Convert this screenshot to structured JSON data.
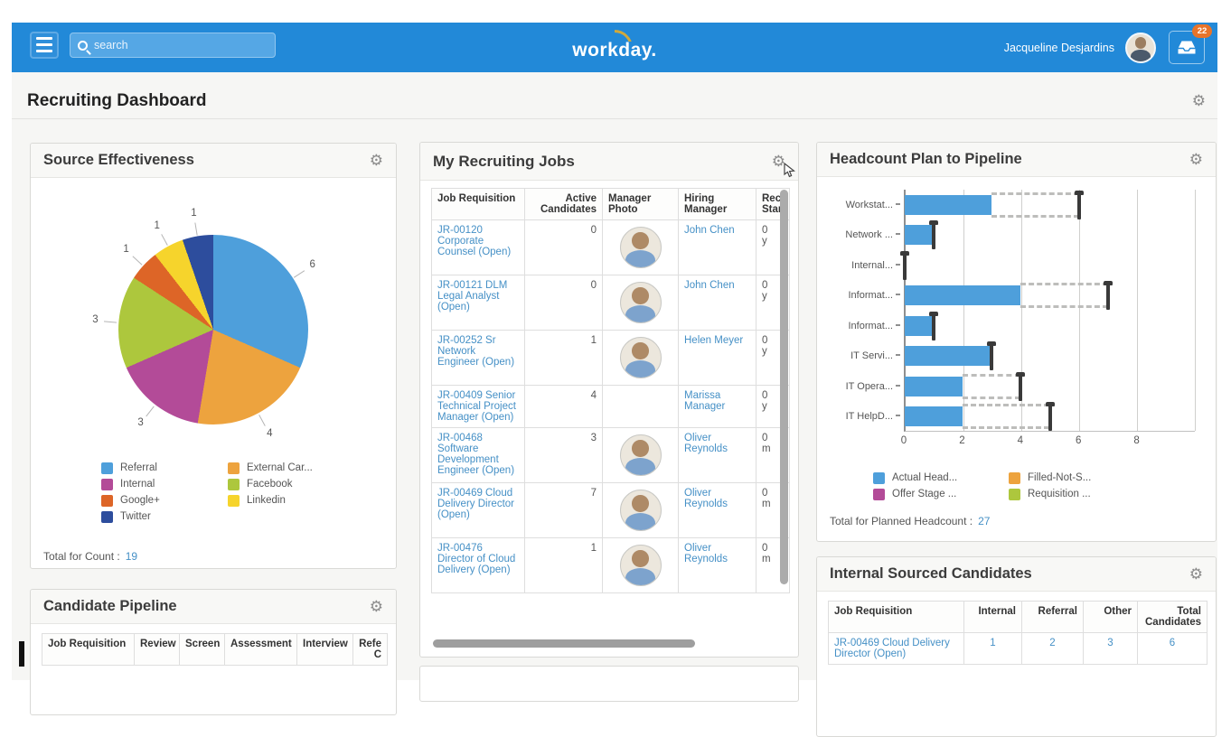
{
  "topbar": {
    "search_placeholder": "search",
    "logo_text": "workday.",
    "user_name": "Jacqueline Desjardins",
    "notification_count": "22"
  },
  "page": {
    "title": "Recruiting Dashboard"
  },
  "source_effectiveness": {
    "title": "Source Effectiveness",
    "legend_col1": [
      {
        "label": "Referral",
        "color": "#4e9fdb"
      },
      {
        "label": "Internal",
        "color": "#b34b98"
      },
      {
        "label": "Google+",
        "color": "#dd6527"
      },
      {
        "label": "Twitter",
        "color": "#2d4d9d"
      }
    ],
    "legend_col2": [
      {
        "label": "External Car...",
        "color": "#eda33e"
      },
      {
        "label": "Facebook",
        "color": "#adc73d"
      },
      {
        "label": "Linkedin",
        "color": "#f6d42c"
      }
    ],
    "total_label": "Total for Count :",
    "total_value": "19"
  },
  "my_recruiting_jobs": {
    "title": "My Recruiting Jobs",
    "columns": [
      {
        "lines": [
          "Job Requisition"
        ],
        "align": "left"
      },
      {
        "lines": [
          "Active",
          "Candidates"
        ],
        "align": "right"
      },
      {
        "lines": [
          "Manager",
          "Photo"
        ],
        "align": "left"
      },
      {
        "lines": [
          "Hiring",
          "Manager"
        ],
        "align": "left"
      },
      {
        "lines": [
          "Rec",
          "Star"
        ],
        "align": "left"
      }
    ],
    "rows": [
      {
        "job": "JR-00120 Corporate Counsel (Open)",
        "active": "0",
        "photo": true,
        "manager": "John Chen",
        "rec": [
          "0",
          "y"
        ]
      },
      {
        "job": "JR-00121 DLM Legal Analyst (Open)",
        "active": "0",
        "photo": true,
        "manager": "John Chen",
        "rec": [
          "0",
          "y"
        ]
      },
      {
        "job": "JR-00252 Sr Network Engineer (Open)",
        "active": "1",
        "photo": true,
        "manager": "Helen Meyer",
        "rec": [
          "0",
          "y"
        ]
      },
      {
        "job": "JR-00409 Senior Technical Project Manager (Open)",
        "active": "4",
        "photo": false,
        "manager": "Marissa Manager",
        "rec": [
          "0",
          "y"
        ]
      },
      {
        "job": "JR-00468 Software Development Engineer (Open)",
        "active": "3",
        "photo": true,
        "manager": "Oliver Reynolds",
        "rec": [
          "0",
          "m"
        ]
      },
      {
        "job": "JR-00469 Cloud Delivery Director (Open)",
        "active": "7",
        "photo": true,
        "manager": "Oliver Reynolds",
        "rec": [
          "0",
          "m"
        ]
      },
      {
        "job": "JR-00476 Director of Cloud Delivery (Open)",
        "active": "1",
        "photo": true,
        "manager": "Oliver Reynolds",
        "rec": [
          "0",
          "m"
        ]
      }
    ]
  },
  "headcount": {
    "title": "Headcount Plan to Pipeline",
    "legend_col1": [
      {
        "label": "Actual Head...",
        "color": "#4e9fdb"
      },
      {
        "label": "Offer Stage ...",
        "color": "#b34b98"
      }
    ],
    "legend_col2": [
      {
        "label": "Filled-Not-S...",
        "color": "#eda33e"
      },
      {
        "label": "Requisition ...",
        "color": "#adc73d"
      }
    ],
    "total_label": "Total for Planned Headcount :",
    "total_value": "27"
  },
  "candidate_pipeline": {
    "title": "Candidate Pipeline",
    "columns": [
      {
        "lines": [
          "Job Requisition"
        ],
        "align": "left"
      },
      {
        "lines": [
          "Review"
        ],
        "align": "right"
      },
      {
        "lines": [
          "Screen"
        ],
        "align": "right"
      },
      {
        "lines": [
          "Assessment"
        ],
        "align": "right"
      },
      {
        "lines": [
          "Interview"
        ],
        "align": "right"
      },
      {
        "lines": [
          "Refe",
          "C"
        ],
        "align": "right"
      }
    ]
  },
  "internal_sourced": {
    "title": "Internal Sourced Candidates",
    "columns": [
      {
        "lines": [
          "Job Requisition"
        ],
        "align": "left"
      },
      {
        "lines": [
          "Internal"
        ],
        "align": "right"
      },
      {
        "lines": [
          "Referral"
        ],
        "align": "right"
      },
      {
        "lines": [
          "Other"
        ],
        "align": "right"
      },
      {
        "lines": [
          "Total",
          "Candidates"
        ],
        "align": "right"
      }
    ],
    "rows": [
      {
        "job": "JR-00469 Cloud Delivery Director (Open)",
        "internal": "1",
        "referral": "2",
        "other": "3",
        "total": "6"
      }
    ]
  },
  "chart_data": [
    {
      "type": "pie",
      "title": "Source Effectiveness",
      "slices": [
        {
          "label": "Referral",
          "value": 6,
          "color": "#4e9fdb"
        },
        {
          "label": "External Car...",
          "value": 4,
          "color": "#eda33e"
        },
        {
          "label": "Internal",
          "value": 3,
          "color": "#b34b98"
        },
        {
          "label": "Facebook",
          "value": 3,
          "color": "#adc73d"
        },
        {
          "label": "Google+",
          "value": 1,
          "color": "#dd6527"
        },
        {
          "label": "Linkedin",
          "value": 1,
          "color": "#f6d42c"
        },
        {
          "label": "Twitter",
          "value": 1,
          "color": "#2d4d9d"
        }
      ],
      "total_label": "Total for Count :",
      "total": 19
    },
    {
      "type": "bar",
      "orientation": "horizontal",
      "title": "Headcount Plan to Pipeline",
      "categories": [
        "Workstat...",
        "Network ...",
        "Internal...",
        "Informat...",
        "Informat...",
        "IT Servi...",
        "IT Opera...",
        "IT HelpD..."
      ],
      "series": [
        {
          "name": "Actual Head...",
          "values": [
            3,
            1,
            0,
            4,
            1,
            3,
            2,
            2
          ]
        },
        {
          "name": "Planned Headcount",
          "values": [
            6,
            1,
            0,
            7,
            1,
            3,
            4,
            5
          ]
        }
      ],
      "x_ticks": [
        0,
        2,
        4,
        6,
        8
      ],
      "xlim": [
        0,
        10
      ],
      "legend": [
        "Actual Head...",
        "Filled-Not-S...",
        "Offer Stage ...",
        "Requisition ..."
      ],
      "legend_position": "bottom",
      "grid": true,
      "total_planned": 27
    }
  ]
}
